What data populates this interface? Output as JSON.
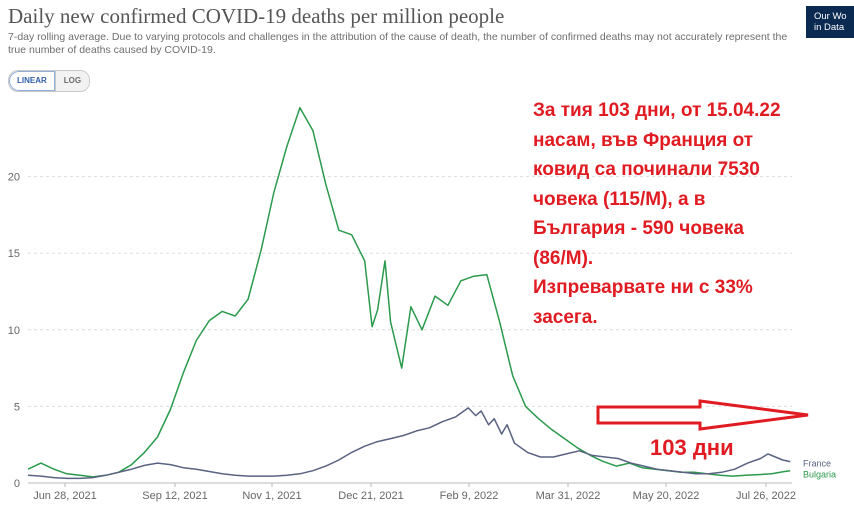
{
  "header": {
    "title": "Daily new confirmed COVID-19 deaths per million people",
    "subtitle": "7-day rolling average. Due to varying protocols and challenges in the attribution of the cause of death, the number of confirmed deaths may not accurately represent the true number of deaths caused by COVID-19.",
    "logo_line1": "Our Wo",
    "logo_line2": "in Data"
  },
  "scale_toggle": {
    "linear_label": "LINEAR",
    "log_label": "LOG",
    "selected": "LINEAR"
  },
  "annotation": {
    "lines": [
      "За тия 103 дни, от 15.04.22",
      "насам, във Франция от",
      "ковид са починали 7530",
      "човека (115/М), а в",
      "България - 590 човека",
      "(86/М).",
      "Изпреварвате ни с 33%",
      "засега."
    ],
    "days_label": "103 дни",
    "color": "#e01b22"
  },
  "colors": {
    "Bulgaria": "#2b9a4c",
    "France": "#5a6282",
    "grid": "#dddddd",
    "axis_text": "#666666",
    "annotation": "#e01b22"
  },
  "chart_data": {
    "type": "line",
    "x_ticks": [
      "Jun 28, 2021",
      "Sep 12, 2021",
      "Nov 1, 2021",
      "Dec 21, 2021",
      "Feb 9, 2022",
      "Mar 31, 2022",
      "May 20, 2022",
      "Jul 26, 2022"
    ],
    "y_ticks": [
      0,
      5,
      10,
      15,
      20
    ],
    "ylim": [
      0,
      25
    ],
    "xlim": [
      "2021-06-15",
      "2022-08-02"
    ],
    "grid": true,
    "legend_position": "right",
    "series": [
      {
        "name": "Bulgaria",
        "points": [
          [
            "2021-06-15",
            0.9
          ],
          [
            "2021-06-22",
            1.3
          ],
          [
            "2021-06-29",
            0.9
          ],
          [
            "2021-07-06",
            0.6
          ],
          [
            "2021-07-13",
            0.5
          ],
          [
            "2021-07-20",
            0.4
          ],
          [
            "2021-07-27",
            0.5
          ],
          [
            "2021-08-03",
            0.7
          ],
          [
            "2021-08-10",
            1.2
          ],
          [
            "2021-08-17",
            2.0
          ],
          [
            "2021-08-24",
            3.0
          ],
          [
            "2021-08-31",
            4.8
          ],
          [
            "2021-09-07",
            7.2
          ],
          [
            "2021-09-14",
            9.3
          ],
          [
            "2021-09-21",
            10.6
          ],
          [
            "2021-09-28",
            11.2
          ],
          [
            "2021-10-05",
            10.9
          ],
          [
            "2021-10-12",
            12.0
          ],
          [
            "2021-10-19",
            15.2
          ],
          [
            "2021-10-26",
            19.0
          ],
          [
            "2021-11-02",
            22.0
          ],
          [
            "2021-11-09",
            24.5
          ],
          [
            "2021-11-16",
            23.0
          ],
          [
            "2021-11-23",
            19.5
          ],
          [
            "2021-11-30",
            16.5
          ],
          [
            "2021-12-07",
            16.2
          ],
          [
            "2021-12-14",
            14.5
          ],
          [
            "2021-12-18",
            10.2
          ],
          [
            "2021-12-21",
            11.3
          ],
          [
            "2021-12-25",
            14.5
          ],
          [
            "2021-12-28",
            10.5
          ],
          [
            "2022-01-03",
            7.5
          ],
          [
            "2022-01-08",
            11.5
          ],
          [
            "2022-01-14",
            10.0
          ],
          [
            "2022-01-21",
            12.2
          ],
          [
            "2022-01-28",
            11.6
          ],
          [
            "2022-02-04",
            13.2
          ],
          [
            "2022-02-11",
            13.5
          ],
          [
            "2022-02-18",
            13.6
          ],
          [
            "2022-02-25",
            10.5
          ],
          [
            "2022-03-04",
            7.0
          ],
          [
            "2022-03-11",
            5.0
          ],
          [
            "2022-03-18",
            4.2
          ],
          [
            "2022-03-25",
            3.5
          ],
          [
            "2022-04-01",
            2.9
          ],
          [
            "2022-04-08",
            2.3
          ],
          [
            "2022-04-15",
            1.8
          ],
          [
            "2022-04-22",
            1.4
          ],
          [
            "2022-04-29",
            1.1
          ],
          [
            "2022-05-06",
            1.3
          ],
          [
            "2022-05-13",
            1.0
          ],
          [
            "2022-05-20",
            0.9
          ],
          [
            "2022-05-27",
            0.8
          ],
          [
            "2022-06-03",
            0.7
          ],
          [
            "2022-06-10",
            0.7
          ],
          [
            "2022-06-17",
            0.6
          ],
          [
            "2022-06-24",
            0.5
          ],
          [
            "2022-07-01",
            0.45
          ],
          [
            "2022-07-08",
            0.5
          ],
          [
            "2022-07-15",
            0.55
          ],
          [
            "2022-07-22",
            0.6
          ],
          [
            "2022-07-29",
            0.75
          ],
          [
            "2022-08-01",
            0.8
          ]
        ]
      },
      {
        "name": "France",
        "points": [
          [
            "2021-06-15",
            0.5
          ],
          [
            "2021-06-22",
            0.45
          ],
          [
            "2021-06-29",
            0.35
          ],
          [
            "2021-07-06",
            0.3
          ],
          [
            "2021-07-13",
            0.3
          ],
          [
            "2021-07-20",
            0.35
          ],
          [
            "2021-07-27",
            0.5
          ],
          [
            "2021-08-03",
            0.7
          ],
          [
            "2021-08-10",
            0.9
          ],
          [
            "2021-08-17",
            1.15
          ],
          [
            "2021-08-24",
            1.3
          ],
          [
            "2021-08-31",
            1.2
          ],
          [
            "2021-09-07",
            1.0
          ],
          [
            "2021-09-14",
            0.9
          ],
          [
            "2021-09-21",
            0.75
          ],
          [
            "2021-09-28",
            0.6
          ],
          [
            "2021-10-05",
            0.5
          ],
          [
            "2021-10-12",
            0.45
          ],
          [
            "2021-10-19",
            0.45
          ],
          [
            "2021-10-26",
            0.45
          ],
          [
            "2021-11-02",
            0.5
          ],
          [
            "2021-11-09",
            0.6
          ],
          [
            "2021-11-16",
            0.8
          ],
          [
            "2021-11-23",
            1.1
          ],
          [
            "2021-11-30",
            1.5
          ],
          [
            "2021-12-07",
            2.0
          ],
          [
            "2021-12-14",
            2.4
          ],
          [
            "2021-12-21",
            2.7
          ],
          [
            "2021-12-28",
            2.9
          ],
          [
            "2022-01-04",
            3.1
          ],
          [
            "2022-01-11",
            3.4
          ],
          [
            "2022-01-18",
            3.6
          ],
          [
            "2022-01-25",
            4.0
          ],
          [
            "2022-02-01",
            4.3
          ],
          [
            "2022-02-08",
            4.9
          ],
          [
            "2022-02-12",
            4.4
          ],
          [
            "2022-02-15",
            4.7
          ],
          [
            "2022-02-19",
            3.8
          ],
          [
            "2022-02-22",
            4.2
          ],
          [
            "2022-02-26",
            3.2
          ],
          [
            "2022-03-01",
            3.8
          ],
          [
            "2022-03-05",
            2.6
          ],
          [
            "2022-03-12",
            2.0
          ],
          [
            "2022-03-19",
            1.7
          ],
          [
            "2022-03-26",
            1.7
          ],
          [
            "2022-04-02",
            1.9
          ],
          [
            "2022-04-09",
            2.1
          ],
          [
            "2022-04-16",
            1.8
          ],
          [
            "2022-04-23",
            1.7
          ],
          [
            "2022-04-30",
            1.6
          ],
          [
            "2022-05-07",
            1.3
          ],
          [
            "2022-05-14",
            1.1
          ],
          [
            "2022-05-21",
            0.9
          ],
          [
            "2022-05-28",
            0.8
          ],
          [
            "2022-06-04",
            0.7
          ],
          [
            "2022-06-11",
            0.6
          ],
          [
            "2022-06-18",
            0.6
          ],
          [
            "2022-06-25",
            0.7
          ],
          [
            "2022-07-02",
            0.9
          ],
          [
            "2022-07-09",
            1.3
          ],
          [
            "2022-07-16",
            1.6
          ],
          [
            "2022-07-20",
            1.9
          ],
          [
            "2022-07-24",
            1.7
          ],
          [
            "2022-07-28",
            1.5
          ],
          [
            "2022-08-01",
            1.4
          ]
        ]
      }
    ]
  }
}
